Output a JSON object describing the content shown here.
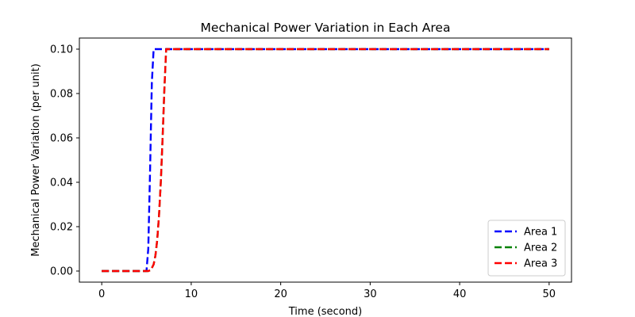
{
  "chart_data": {
    "type": "line",
    "title": "Mechanical Power Variation in Each Area",
    "xlabel": "Time (second)",
    "ylabel": "Mechanical Power Variation (per unit)",
    "xlim": [
      -2.5,
      52.5
    ],
    "ylim": [
      -0.005,
      0.105
    ],
    "xticks": [
      0,
      10,
      20,
      30,
      40,
      50
    ],
    "yticks": [
      0.0,
      0.02,
      0.04,
      0.06,
      0.08,
      0.1
    ],
    "xtick_labels": [
      "0",
      "10",
      "20",
      "30",
      "40",
      "50"
    ],
    "ytick_labels": [
      "0.00",
      "0.02",
      "0.04",
      "0.06",
      "0.08",
      "0.10"
    ],
    "grid": false,
    "legend_position": "bottom-right",
    "series": [
      {
        "name": "Area 1",
        "color": "#0000ff",
        "style": "dashed",
        "x": [
          0,
          5.0,
          5.2,
          5.4,
          5.6,
          5.8,
          6.0,
          50
        ],
        "y": [
          0,
          0,
          0.01,
          0.045,
          0.085,
          0.1,
          0.1,
          0.1
        ]
      },
      {
        "name": "Area 2",
        "color": "#008000",
        "style": "dashed",
        "x": [
          0,
          5.2,
          5.5,
          5.8,
          6.0,
          6.2,
          6.4,
          6.6,
          6.8,
          7.0,
          7.2,
          7.4,
          50
        ],
        "y": [
          0,
          0,
          0.0005,
          0.003,
          0.007,
          0.014,
          0.025,
          0.04,
          0.06,
          0.082,
          0.1,
          0.1,
          0.1
        ]
      },
      {
        "name": "Area 3",
        "color": "#ff0000",
        "style": "dashed",
        "x": [
          0,
          5.2,
          5.5,
          5.8,
          6.0,
          6.2,
          6.4,
          6.6,
          6.8,
          7.0,
          7.2,
          7.4,
          50
        ],
        "y": [
          0,
          0,
          0.0005,
          0.003,
          0.007,
          0.014,
          0.025,
          0.04,
          0.06,
          0.082,
          0.1,
          0.1,
          0.1
        ]
      }
    ]
  }
}
